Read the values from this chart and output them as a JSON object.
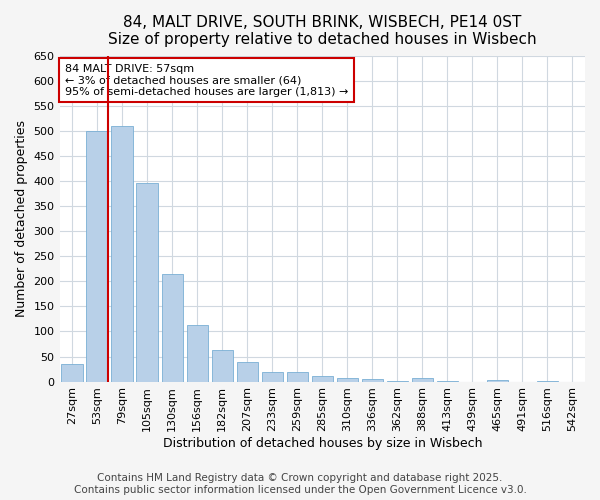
{
  "title_line1": "84, MALT DRIVE, SOUTH BRINK, WISBECH, PE14 0ST",
  "title_line2": "Size of property relative to detached houses in Wisbech",
  "xlabel": "Distribution of detached houses by size in Wisbech",
  "ylabel": "Number of detached properties",
  "categories": [
    "27sqm",
    "53sqm",
    "79sqm",
    "105sqm",
    "130sqm",
    "156sqm",
    "182sqm",
    "207sqm",
    "233sqm",
    "259sqm",
    "285sqm",
    "310sqm",
    "336sqm",
    "362sqm",
    "388sqm",
    "413sqm",
    "439sqm",
    "465sqm",
    "491sqm",
    "516sqm",
    "542sqm"
  ],
  "values": [
    35,
    500,
    510,
    395,
    215,
    113,
    63,
    40,
    20,
    20,
    12,
    8,
    5,
    1,
    8,
    1,
    0,
    4,
    0,
    1,
    0
  ],
  "bar_color": "#b8d0e8",
  "bar_edge_color": "#7aafd4",
  "vline_x_index": 1,
  "annotation_line1": "84 MALT DRIVE: 57sqm",
  "annotation_line2": "← 3% of detached houses are smaller (64)",
  "annotation_line3": "95% of semi-detached houses are larger (1,813) →",
  "vline_color": "#cc0000",
  "annotation_box_edge_color": "#cc0000",
  "annotation_box_face_color": "#ffffff",
  "ylim": [
    0,
    650
  ],
  "yticks": [
    0,
    50,
    100,
    150,
    200,
    250,
    300,
    350,
    400,
    450,
    500,
    550,
    600,
    650
  ],
  "background_color": "#f5f5f5",
  "plot_bg_color": "#ffffff",
  "grid_color": "#d0d8e0",
  "title_fontsize": 11,
  "subtitle_fontsize": 10,
  "axis_label_fontsize": 9,
  "tick_fontsize": 8,
  "annotation_fontsize": 8,
  "footer_fontsize": 7.5,
  "footer_line1": "Contains HM Land Registry data © Crown copyright and database right 2025.",
  "footer_line2": "Contains public sector information licensed under the Open Government Licence v3.0."
}
